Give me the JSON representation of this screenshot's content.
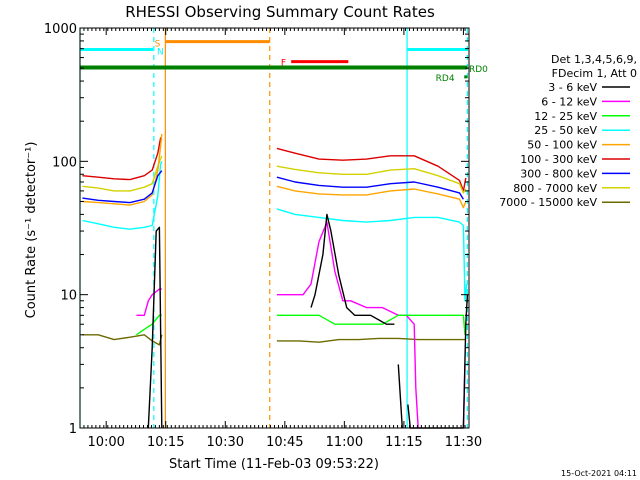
{
  "chart_data": {
    "type": "line",
    "title": "RHESSI Observing Summary Count Rates",
    "xlabel": "Start Time (11-Feb-03 09:53:22)",
    "ylabel": "Count Rate (s⁻¹ detector⁻¹)",
    "yscale": "log",
    "ylim": [
      1,
      1000
    ],
    "xlim_minutes": [
      0,
      98
    ],
    "x_ticks": [
      {
        "minute": 6.6,
        "label": "10:00"
      },
      {
        "minute": 21.6,
        "label": "10:15"
      },
      {
        "minute": 36.6,
        "label": "10:30"
      },
      {
        "minute": 51.6,
        "label": "10:45"
      },
      {
        "minute": 66.6,
        "label": "11:00"
      },
      {
        "minute": 81.6,
        "label": "11:15"
      },
      {
        "minute": 96.6,
        "label": "11:30"
      }
    ],
    "y_ticks": [
      {
        "value": 1,
        "label": "1"
      },
      {
        "value": 10,
        "label": "10"
      },
      {
        "value": 100,
        "label": "100"
      },
      {
        "value": 1000,
        "label": "1000"
      }
    ],
    "legend_header": [
      "Det 1,3,4,5,6,9,",
      "FDecim 1, Att 0"
    ],
    "series": [
      {
        "name": "3 - 6 keV",
        "color": "#000000",
        "points": [
          [
            17.2,
            1
          ],
          [
            18.2,
            4
          ],
          [
            19.2,
            30
          ],
          [
            20.0,
            32
          ],
          [
            20.6,
            1
          ],
          [
            20.6,
            null
          ],
          [
            58.2,
            8
          ],
          [
            59.2,
            10
          ],
          [
            61.2,
            20
          ],
          [
            62.2,
            40
          ],
          [
            63.2,
            30
          ],
          [
            65.2,
            14
          ],
          [
            67.2,
            8
          ],
          [
            69.2,
            7
          ],
          [
            73.2,
            7
          ],
          [
            77.2,
            6
          ],
          [
            79.2,
            6
          ],
          [
            79.2,
            null
          ],
          [
            80.2,
            3
          ],
          [
            81.2,
            1
          ],
          [
            81.2,
            null
          ],
          [
            82.6,
            1.5
          ],
          [
            83.2,
            1
          ],
          [
            96.6,
            1
          ],
          [
            97.2,
            6
          ],
          [
            97.6,
            10
          ]
        ]
      },
      {
        "name": "6 - 12 keV",
        "color": "#ff00ff",
        "points": [
          [
            14.2,
            7
          ],
          [
            16.2,
            7
          ],
          [
            17.2,
            9
          ],
          [
            18.2,
            10
          ],
          [
            20.0,
            11
          ],
          [
            20.6,
            11
          ],
          [
            20.6,
            null
          ],
          [
            49.6,
            10
          ],
          [
            53.2,
            10
          ],
          [
            56.2,
            10
          ],
          [
            58.2,
            12
          ],
          [
            60.2,
            25
          ],
          [
            62.2,
            35
          ],
          [
            64.2,
            15
          ],
          [
            66.2,
            9
          ],
          [
            68.2,
            9
          ],
          [
            72.2,
            8
          ],
          [
            76.2,
            8
          ],
          [
            80.2,
            7
          ],
          [
            82.2,
            7
          ],
          [
            84.2,
            6
          ],
          [
            84.6,
            2
          ],
          [
            85.2,
            1
          ],
          [
            85.2,
            null
          ],
          [
            96.6,
            1
          ],
          [
            97.0,
            3
          ]
        ]
      },
      {
        "name": "12 - 25 keV",
        "color": "#00ff00",
        "points": [
          [
            14.2,
            5
          ],
          [
            16.2,
            5.5
          ],
          [
            18.2,
            6
          ],
          [
            20.0,
            7
          ],
          [
            20.6,
            7
          ],
          [
            20.6,
            null
          ],
          [
            49.6,
            7
          ],
          [
            55.2,
            7
          ],
          [
            60.2,
            7
          ],
          [
            64.2,
            6
          ],
          [
            68.2,
            6
          ],
          [
            72.2,
            6
          ],
          [
            76.2,
            6
          ],
          [
            80.2,
            7
          ],
          [
            84.2,
            7
          ],
          [
            88.2,
            7
          ],
          [
            92.2,
            7
          ],
          [
            95.6,
            7
          ],
          [
            96.6,
            7
          ],
          [
            97.0,
            5
          ]
        ]
      },
      {
        "name": "25 - 50 keV",
        "color": "#00ffff",
        "points": [
          [
            0.6,
            36
          ],
          [
            4.6,
            34
          ],
          [
            8.6,
            32
          ],
          [
            12.6,
            31
          ],
          [
            16.2,
            32
          ],
          [
            18.2,
            33
          ],
          [
            19.6,
            55
          ],
          [
            20.3,
            95
          ],
          [
            20.6,
            100
          ],
          [
            20.6,
            null
          ],
          [
            49.6,
            44
          ],
          [
            54.2,
            40
          ],
          [
            60.2,
            38
          ],
          [
            66.2,
            36
          ],
          [
            72.2,
            35
          ],
          [
            78.2,
            36
          ],
          [
            84.2,
            38
          ],
          [
            90.2,
            38
          ],
          [
            95.6,
            35
          ],
          [
            96.6,
            33
          ],
          [
            97.0,
            9
          ],
          [
            97.4,
            12
          ]
        ]
      },
      {
        "name": "50 - 100 keV",
        "color": "#ffa500",
        "points": [
          [
            0.6,
            50
          ],
          [
            4.6,
            49
          ],
          [
            8.6,
            48
          ],
          [
            12.6,
            47
          ],
          [
            16.2,
            50
          ],
          [
            18.2,
            56
          ],
          [
            19.6,
            85
          ],
          [
            20.3,
            130
          ],
          [
            20.6,
            160
          ],
          [
            20.6,
            null
          ],
          [
            49.6,
            65
          ],
          [
            54.2,
            60
          ],
          [
            60.2,
            57
          ],
          [
            66.2,
            56
          ],
          [
            72.2,
            56
          ],
          [
            78.2,
            60
          ],
          [
            84.2,
            62
          ],
          [
            90.2,
            57
          ],
          [
            95.6,
            52
          ],
          [
            96.6,
            45
          ],
          [
            97.2,
            50
          ]
        ]
      },
      {
        "name": "100 - 300 keV",
        "color": "#dc0000",
        "points": [
          [
            0.6,
            78
          ],
          [
            4.6,
            76
          ],
          [
            8.6,
            74
          ],
          [
            12.6,
            73
          ],
          [
            16.2,
            78
          ],
          [
            18.2,
            86
          ],
          [
            19.6,
            115
          ],
          [
            20.3,
            150
          ],
          [
            20.6,
            145
          ],
          [
            20.6,
            null
          ],
          [
            49.6,
            125
          ],
          [
            54.2,
            115
          ],
          [
            60.2,
            104
          ],
          [
            66.2,
            102
          ],
          [
            72.2,
            104
          ],
          [
            78.2,
            110
          ],
          [
            84.2,
            110
          ],
          [
            90.2,
            92
          ],
          [
            95.6,
            72
          ],
          [
            96.6,
            60
          ],
          [
            97.2,
            75
          ]
        ]
      },
      {
        "name": "300 - 800 keV",
        "color": "#0000ff",
        "points": [
          [
            0.6,
            53
          ],
          [
            4.6,
            51
          ],
          [
            8.6,
            50
          ],
          [
            12.6,
            49
          ],
          [
            16.2,
            52
          ],
          [
            18.2,
            58
          ],
          [
            19.6,
            78
          ],
          [
            20.6,
            85
          ],
          [
            20.6,
            null
          ],
          [
            49.6,
            76
          ],
          [
            54.2,
            70
          ],
          [
            60.2,
            66
          ],
          [
            66.2,
            64
          ],
          [
            72.2,
            64
          ],
          [
            78.2,
            68
          ],
          [
            84.2,
            70
          ],
          [
            90.2,
            64
          ],
          [
            95.6,
            58
          ],
          [
            96.6,
            52
          ]
        ]
      },
      {
        "name": "800 - 7000 keV",
        "color": "#d2d200",
        "points": [
          [
            0.6,
            65
          ],
          [
            4.6,
            63
          ],
          [
            8.6,
            60
          ],
          [
            12.6,
            60
          ],
          [
            16.2,
            64
          ],
          [
            18.2,
            68
          ],
          [
            19.6,
            92
          ],
          [
            20.6,
            110
          ],
          [
            20.6,
            null
          ],
          [
            49.6,
            92
          ],
          [
            54.2,
            87
          ],
          [
            60.2,
            82
          ],
          [
            66.2,
            80
          ],
          [
            72.2,
            80
          ],
          [
            78.2,
            86
          ],
          [
            84.2,
            88
          ],
          [
            90.2,
            78
          ],
          [
            95.6,
            68
          ],
          [
            96.6,
            58
          ],
          [
            97.2,
            62
          ]
        ]
      },
      {
        "name": "7000 - 15000 keV",
        "color": "#6b6b00",
        "points": [
          [
            0.6,
            5
          ],
          [
            4.6,
            5
          ],
          [
            8.6,
            4.6
          ],
          [
            12.6,
            4.8
          ],
          [
            16.2,
            5
          ],
          [
            18.2,
            4.5
          ],
          [
            20.0,
            4.2
          ],
          [
            20.6,
            5
          ],
          [
            20.6,
            null
          ],
          [
            49.6,
            4.5
          ],
          [
            55.2,
            4.5
          ],
          [
            60.2,
            4.4
          ],
          [
            65.2,
            4.6
          ],
          [
            70.2,
            4.6
          ],
          [
            75.2,
            4.7
          ],
          [
            80.2,
            4.7
          ],
          [
            85.2,
            4.6
          ],
          [
            90.2,
            4.6
          ],
          [
            95.6,
            4.6
          ],
          [
            97.0,
            4.6
          ]
        ]
      }
    ],
    "markers": [
      {
        "name": "cyan-interval-start",
        "minute": 18.6,
        "color": "#00ffff",
        "style": "dashed"
      },
      {
        "name": "cyan-interval-end",
        "minute": 82.4,
        "color": "#00ffff",
        "style": "solid"
      },
      {
        "name": "cyan-left-edge",
        "minute": 0.0,
        "color": "#00ffff",
        "style": "solid"
      },
      {
        "name": "cyan-right-edge",
        "minute": 97.6,
        "color": "#00ffff",
        "style": "dashed"
      },
      {
        "name": "orange-interval-start",
        "minute": 21.5,
        "color": "#ff8c00",
        "style": "solid"
      },
      {
        "name": "orange-interval-end",
        "minute": 47.8,
        "color": "#ff8c00",
        "style": "dashed"
      }
    ],
    "annotations": [
      {
        "text": "S",
        "minute": 18.8,
        "level": 780,
        "color": "#ff8c00"
      },
      {
        "text": "N",
        "minute": 19.4,
        "level": 680,
        "color": "#00ffff"
      },
      {
        "text": "F",
        "minute": 50.6,
        "level": 560,
        "color": "#ff0000"
      },
      {
        "text": "RD4",
        "minute": 89.6,
        "level": 430,
        "color": "#008000"
      },
      {
        "text": "RD0",
        "minute": 98.0,
        "level": 500,
        "color": "#008000"
      }
    ],
    "bars": [
      {
        "name": "cyan-bar-left",
        "from": 0.0,
        "to": 18.4,
        "level": 690,
        "color": "#00ffff",
        "width": 3
      },
      {
        "name": "cyan-bar-right",
        "from": 82.4,
        "to": 97.6,
        "level": 690,
        "color": "#00ffff",
        "width": 3
      },
      {
        "name": "orange-saa-bar",
        "from": 21.5,
        "to": 47.8,
        "level": 790,
        "color": "#ff8c00",
        "width": 3
      },
      {
        "name": "red-flare-bar",
        "from": 53.2,
        "to": 67.6,
        "level": 560,
        "color": "#ff0000",
        "width": 3
      },
      {
        "name": "green-decim-bar",
        "from": 0.0,
        "to": 97.6,
        "level": 505,
        "color": "#008000",
        "width": 4
      },
      {
        "name": "green-rd4-bar",
        "from": 96.8,
        "to": 97.6,
        "level": 430,
        "color": "#008000",
        "width": 3
      }
    ]
  },
  "timestamp": "15-Oct-2021 04:11"
}
